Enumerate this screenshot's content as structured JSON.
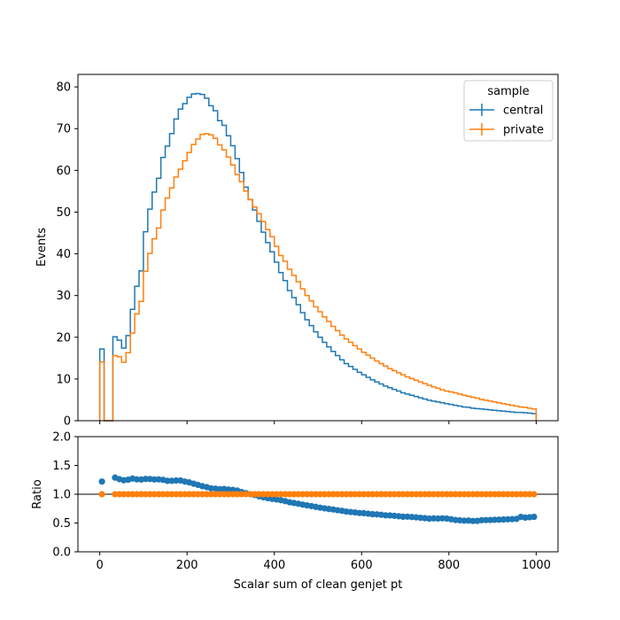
{
  "chart_data": [
    {
      "type": "step",
      "panel": "main",
      "xlabel": "",
      "ylabel": "Events",
      "xlim": [
        -50,
        1050
      ],
      "ylim": [
        0,
        83
      ],
      "yticks": [
        0,
        10,
        20,
        30,
        40,
        50,
        60,
        70,
        80
      ],
      "xticks": [
        0,
        200,
        400,
        600,
        800,
        1000
      ],
      "bin_edges_range": [
        0,
        1000
      ],
      "bin_width": 10,
      "legend": {
        "title": "sample",
        "placement": "top-right"
      },
      "series": [
        {
          "name": "central",
          "color": "#1f77b4",
          "values": [
            17.2,
            0,
            0,
            20.1,
            19.3,
            17.4,
            20.4,
            26.7,
            32.2,
            35.9,
            45.3,
            50.7,
            54.8,
            58.1,
            63.1,
            65.8,
            68.8,
            72.3,
            74.7,
            76.0,
            77.5,
            78.3,
            78.4,
            78.2,
            77.3,
            75.5,
            74.3,
            71.9,
            70.8,
            68.3,
            65.9,
            62.8,
            59.5,
            56.0,
            53.0,
            50.5,
            47.8,
            45.2,
            42.7,
            40.5,
            38.0,
            35.5,
            33.6,
            31.2,
            29.5,
            27.8,
            25.9,
            24.2,
            22.8,
            21.3,
            20.0,
            18.8,
            17.7,
            16.6,
            15.6,
            14.6,
            13.7,
            13.0,
            12.3,
            11.6,
            11.0,
            10.4,
            9.8,
            9.3,
            8.8,
            8.3,
            7.9,
            7.5,
            7.1,
            6.7,
            6.4,
            6.1,
            5.8,
            5.5,
            5.2,
            4.9,
            4.7,
            4.5,
            4.3,
            4.1,
            3.9,
            3.7,
            3.5,
            3.3,
            3.2,
            3.0,
            2.9,
            2.8,
            2.7,
            2.6,
            2.5,
            2.4,
            2.3,
            2.2,
            2.1,
            2.0,
            2.0,
            1.9,
            1.8,
            1.7
          ]
        },
        {
          "name": "private",
          "color": "#ff7f0e",
          "values": [
            14.1,
            0,
            0,
            15.6,
            15.3,
            14.0,
            16.3,
            21.0,
            25.6,
            28.6,
            35.8,
            40.1,
            43.6,
            46.2,
            50.5,
            53.4,
            55.8,
            58.4,
            60.3,
            62.3,
            64.3,
            66.2,
            67.5,
            68.6,
            68.8,
            68.5,
            67.7,
            66.1,
            64.9,
            63.2,
            61.3,
            59.0,
            57.3,
            55.0,
            53.0,
            51.2,
            49.6,
            47.7,
            45.8,
            44.1,
            41.8,
            39.6,
            38.2,
            36.3,
            34.8,
            33.3,
            31.6,
            30.0,
            28.7,
            27.3,
            26.1,
            24.9,
            23.8,
            22.6,
            21.6,
            20.5,
            19.6,
            18.8,
            18.0,
            17.2,
            16.4,
            15.7,
            15.0,
            14.3,
            13.7,
            13.1,
            12.5,
            12.0,
            11.5,
            11.0,
            10.5,
            10.1,
            9.7,
            9.3,
            8.9,
            8.5,
            8.1,
            7.8,
            7.4,
            7.1,
            6.9,
            6.7,
            6.4,
            6.1,
            5.9,
            5.6,
            5.4,
            5.1,
            4.9,
            4.7,
            4.5,
            4.3,
            4.1,
            3.9,
            3.7,
            3.5,
            3.3,
            3.2,
            3.0,
            2.8
          ]
        }
      ]
    },
    {
      "type": "scatter",
      "panel": "ratio",
      "xlabel": "Scalar sum of clean genjet pt",
      "ylabel": "Ratio",
      "xlim": [
        -50,
        1050
      ],
      "ylim": [
        0,
        2
      ],
      "yticks": [
        "0.0",
        "0.5",
        "1.0",
        "1.5",
        "2.0"
      ],
      "xticks": [
        "0",
        "200",
        "400",
        "600",
        "800",
        "1000"
      ],
      "reference_line": 1.0,
      "series": [
        {
          "name": "central",
          "color": "#1f77b4"
        },
        {
          "name": "private",
          "color": "#ff7f0e"
        }
      ]
    }
  ]
}
